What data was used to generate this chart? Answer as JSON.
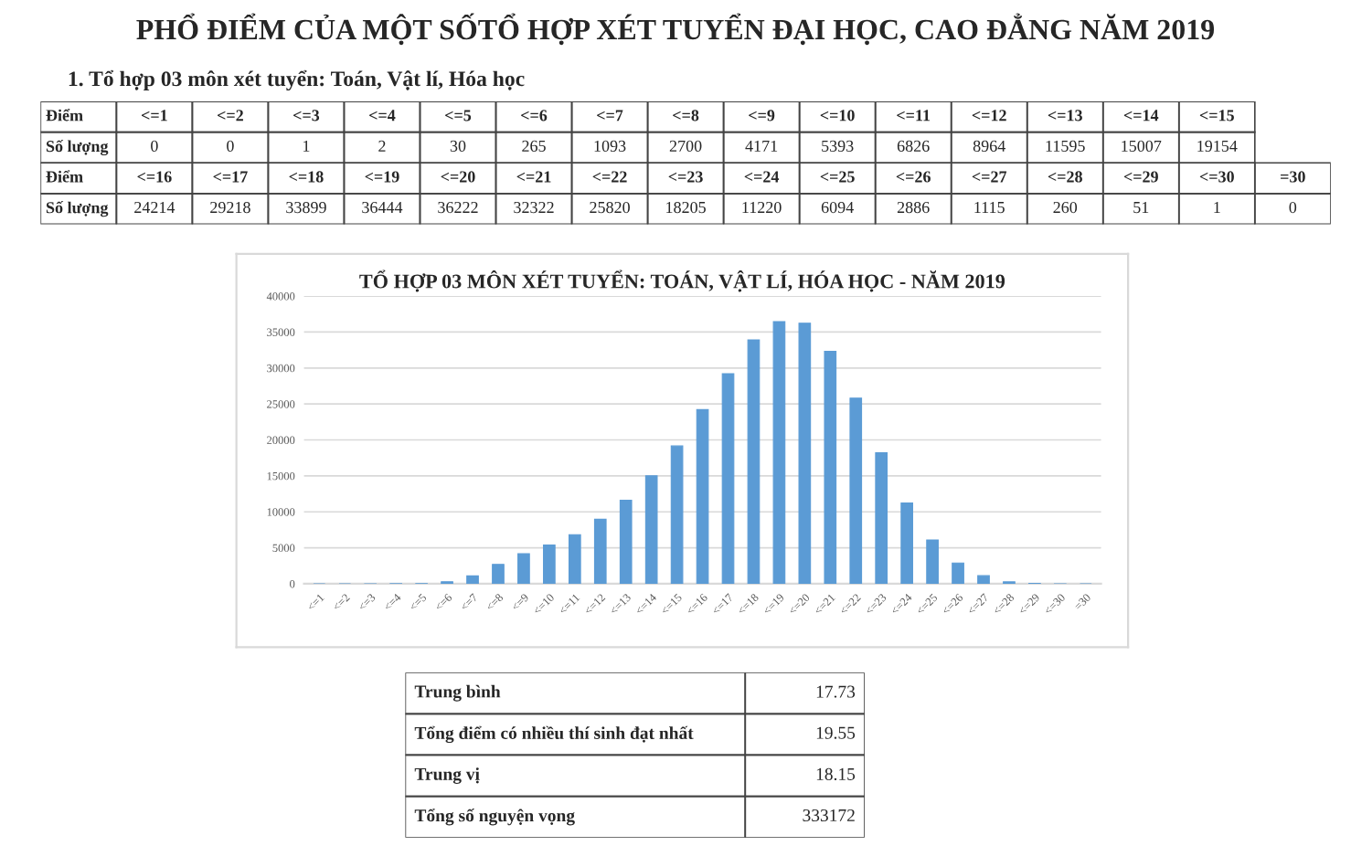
{
  "chart_data": [
    {
      "type": "other",
      "title": "PHỔ ĐIỂM CỦA MỘT SỐTỔ HỢP XÉT TUYỂN ĐẠI HỌC, CAO ĐẲNG NĂM 2019",
      "annotations": [
        "1. Tổ hợp 03 môn xét tuyển: Toán, Vật lí, Hóa học",
        "Điểm",
        "Số lượng"
      ],
      "categories": [
        "<=1",
        "<=2",
        "<=3",
        "<=4",
        "<=5",
        "<=6",
        "<=7",
        "<=8",
        "<=9",
        "<=10",
        "<=11",
        "<=12",
        "<=13",
        "<=14",
        "<=15",
        "<=16",
        "<=17",
        "<=18",
        "<=19",
        "<=20",
        "<=21",
        "<=22",
        "<=23",
        "<=24",
        "<=25",
        "<=26",
        "<=27",
        "<=28",
        "<=29",
        "<=30",
        "=30"
      ],
      "values": [
        0,
        0,
        1,
        2,
        30,
        265,
        1093,
        2700,
        4171,
        5393,
        6826,
        8964,
        11595,
        15007,
        19154,
        24214,
        29218,
        33899,
        36444,
        36222,
        32322,
        25820,
        18205,
        11220,
        6094,
        2886,
        1115,
        260,
        51,
        1,
        0
      ],
      "data_labels": true
    },
    {
      "type": "bar",
      "title": "TỔ HỢP 03 MÔN XÉT TUYỂN: TOÁN, VẬT LÍ, HÓA HỌC - NĂM 2019",
      "annotations": [
        "Trung bình",
        "17.73",
        "Tổng điểm có nhiều thí sinh đạt nhất",
        "19.55",
        "Trung vị",
        "18.15",
        "Tổng số nguyện vọng",
        "333172"
      ],
      "categories": [
        "<=1",
        "<=2",
        "<=3",
        "<=4",
        "<=5",
        "<=6",
        "<=7",
        "<=8",
        "<=9",
        "<=10",
        "<=11",
        "<=12",
        "<=13",
        "<=14",
        "<=15",
        "<=16",
        "<=17",
        "<=18",
        "<=19",
        "<=20",
        "<=21",
        "<=22",
        "<=23",
        "<=24",
        "<=25",
        "<=26",
        "<=27",
        "<=28",
        "<=29",
        "<=30",
        "=30"
      ],
      "values": [
        0,
        0,
        1,
        2,
        30,
        265,
        1093,
        2700,
        4171,
        5393,
        6826,
        8964,
        11595,
        15007,
        19154,
        24214,
        29218,
        33899,
        36444,
        36222,
        32322,
        25820,
        18205,
        11220,
        6094,
        2886,
        1115,
        260,
        51,
        1,
        0
      ],
      "color": "#5b9bd5",
      "ylim": [
        0,
        40000
      ],
      "yticks": [
        0,
        5000,
        10000,
        15000,
        20000,
        25000,
        30000,
        35000,
        40000
      ],
      "grid": "y"
    }
  ]
}
